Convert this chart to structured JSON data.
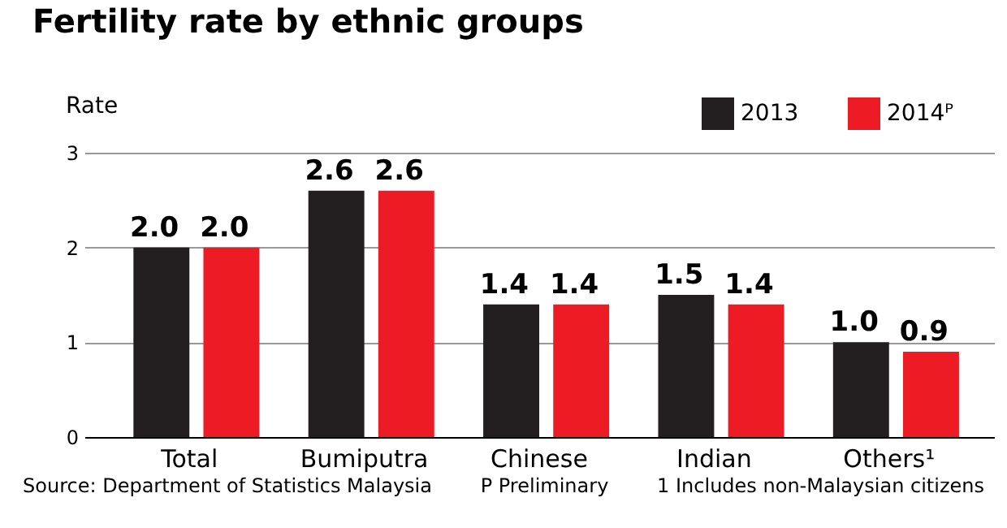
{
  "chart_data": {
    "type": "bar",
    "title": "Fertility rate by ethnic groups",
    "ylabel": "Rate",
    "categories": [
      "Total",
      "Bumiputra",
      "Chinese",
      "Indian",
      "Others¹"
    ],
    "series": [
      {
        "name": "2013",
        "color": "#231f20",
        "values": [
          2.0,
          2.6,
          1.4,
          1.5,
          1.0
        ],
        "value_labels": [
          "2.0",
          "2.6",
          "1.4",
          "1.5",
          "1.0"
        ]
      },
      {
        "name": "2014ᴾ",
        "color": "#ed1c24",
        "values": [
          2.0,
          2.6,
          1.4,
          1.4,
          0.9
        ],
        "value_labels": [
          "2.0",
          "2.6",
          "1.4",
          "1.4",
          "0.9"
        ]
      }
    ],
    "ylim": [
      0,
      3
    ],
    "yticks": [
      0,
      1,
      2,
      3
    ],
    "grid": "y",
    "legend": "top right",
    "annotations": [
      "Source: Department of Statistics Malaysia",
      "P Preliminary",
      "1 Includes non-Malaysian citizens"
    ]
  }
}
